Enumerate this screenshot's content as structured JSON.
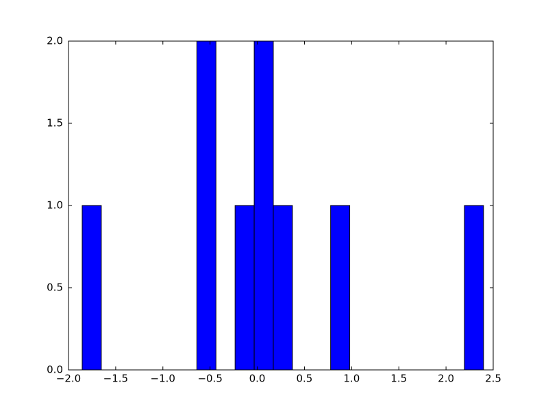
{
  "chart_data": {
    "type": "histogram",
    "color": "#0000ff",
    "bins": [
      -1.855,
      -1.6525,
      -1.45,
      -1.2475,
      -1.045,
      -0.8425,
      -0.64,
      -0.4375,
      -0.235,
      -0.0325,
      0.17,
      0.3725,
      0.575,
      0.7775,
      0.98,
      1.1825,
      1.385,
      1.5875,
      1.79,
      1.9925,
      2.195,
      2.3975
    ],
    "values": [
      1,
      0,
      0,
      0,
      0,
      0,
      2,
      0,
      1,
      2,
      1,
      0,
      0,
      1,
      0,
      0,
      0,
      0,
      0,
      0,
      1
    ],
    "xlim": [
      -2.0,
      2.5
    ],
    "xticks": [
      {
        "value": -2.0,
        "label": "−2.0"
      },
      {
        "value": -1.5,
        "label": "−1.5"
      },
      {
        "value": -1.0,
        "label": "−1.0"
      },
      {
        "value": -0.5,
        "label": "−0.5"
      },
      {
        "value": 0.0,
        "label": "0.0"
      },
      0.5,
      {
        "value": 1.0,
        "label": "1.0"
      },
      1.5,
      {
        "value": 2.0,
        "label": "2.0"
      },
      2.5
    ],
    "ylim": [
      0.0,
      2.0
    ],
    "yticks": [
      {
        "value": 0.0,
        "label": "0.0"
      },
      0.5,
      {
        "value": 1.0,
        "label": "1.0"
      },
      1.5,
      {
        "value": 2.0,
        "label": "2.0"
      }
    ],
    "grid": false
  }
}
